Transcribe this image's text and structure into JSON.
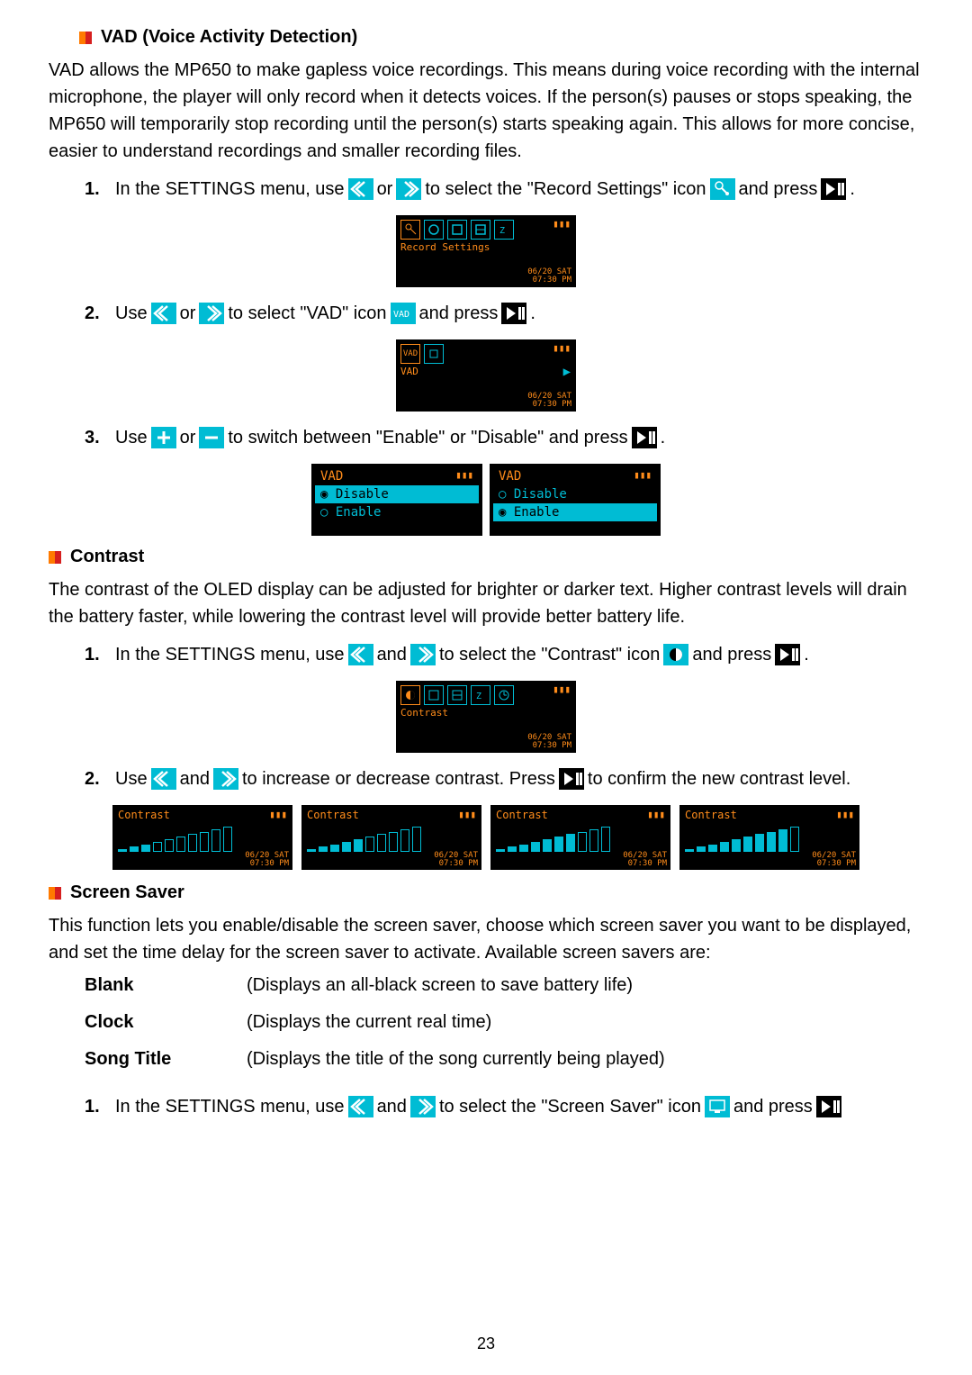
{
  "colors": {
    "text": "#000000",
    "bg": "#ffffff",
    "oled_bg": "#000000",
    "oled_cyan": "#00bcd4",
    "oled_orange": "#ff8c1a",
    "icon_blue_bg": "#00bcd4",
    "icon_white": "#ffffff",
    "bullet_orange": "#ff7a00",
    "bullet_red": "#d61f1f"
  },
  "typography": {
    "body_pt": 20,
    "heading_pt": 20,
    "mono_family": "monospace"
  },
  "vad": {
    "heading": "VAD (Voice Activity Detection)",
    "intro": "VAD allows the MP650 to make gapless voice recordings. This means during voice recording with the internal microphone, the player will only record when it detects voices. If the person(s) pauses or stops speaking, the MP650 will temporarily stop recording until the person(s) starts speaking again. This allows for more concise, easier to understand recordings and smaller recording files.",
    "step1_a": "In the SETTINGS menu, use",
    "step1_b": "or",
    "step1_c": "to select the \"Record Settings\" icon",
    "step1_d": "and press",
    "screen1_label": "Record Settings",
    "step2_a": "Use",
    "step2_b": "or",
    "step2_c": "to select \"VAD\" icon",
    "step2_d": "and press",
    "screen2_label": "VAD",
    "step3_a": "Use",
    "step3_b": "or",
    "step3_c": "to switch between \"Enable\" or \"Disable\" and press",
    "vad_option_title": "VAD",
    "vad_disable": "Disable",
    "vad_enable": "Enable",
    "timestamp_line1": "06/20 SAT",
    "timestamp_line2": "07:30 PM"
  },
  "contrast": {
    "heading": "Contrast",
    "intro": "The contrast of the OLED display can be adjusted for brighter or darker text. Higher contrast levels will drain the battery faster, while lowering the contrast level will provide better battery life.",
    "step1_a": "In the SETTINGS menu, use",
    "step1_b": "and",
    "step1_c": "to select the \"Contrast\" icon",
    "step1_d": "and press",
    "screen1_label": "Contrast",
    "step2_a": "Use",
    "step2_b": "and",
    "step2_c": "to increase or decrease contrast. Press",
    "step2_d": "to confirm the new contrast level.",
    "box_label": "Contrast",
    "timestamp_line1": "06/20 SAT",
    "timestamp_line2": "07:30 PM",
    "boxes": [
      {
        "bars": [
          5,
          8,
          12,
          16,
          20,
          24,
          28,
          32,
          36,
          40
        ],
        "filled": 3
      },
      {
        "bars": [
          5,
          8,
          12,
          16,
          20,
          24,
          28,
          32,
          36,
          40
        ],
        "filled": 5
      },
      {
        "bars": [
          5,
          8,
          12,
          16,
          20,
          24,
          28,
          32,
          36,
          40
        ],
        "filled": 7
      },
      {
        "bars": [
          5,
          8,
          12,
          16,
          20,
          24,
          28,
          32,
          36,
          40
        ],
        "filled": 9
      }
    ]
  },
  "saver": {
    "heading": "Screen Saver",
    "intro": "This function lets you enable/disable the screen saver, choose which screen saver you want to be displayed, and set the time delay for the screen saver to activate.   Available screen savers are:",
    "rows": [
      {
        "name": "Blank",
        "desc": "(Displays an all-black screen to save battery life)"
      },
      {
        "name": "Clock",
        "desc": "(Displays the current real time)"
      },
      {
        "name": "Song Title",
        "desc": "(Displays the title of the song currently being played)"
      }
    ],
    "step1_a": "In the SETTINGS menu, use",
    "step1_b": "and",
    "step1_c": "to select the \"Screen Saver\" icon",
    "step1_d": "and press"
  },
  "page_number": "23"
}
